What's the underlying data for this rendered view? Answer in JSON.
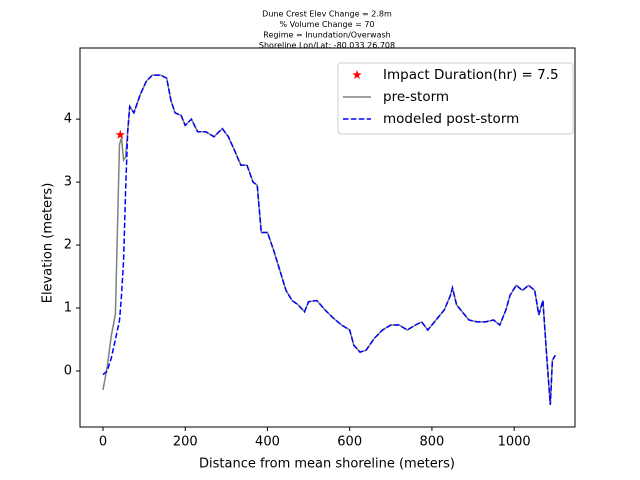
{
  "chart_data": {
    "type": "line",
    "title_lines": [
      "Dune Crest Elev Change = 2.8m",
      "% Volume Change = 70",
      "Regime = Inundation/Overwash",
      "Shoreline Lon/Lat: -80.033 26.708"
    ],
    "xlabel": "Distance from mean shoreline (meters)",
    "ylabel": "Elevation (meters)",
    "xlim": [
      -56,
      1148
    ],
    "ylim": [
      -0.89,
      5.13
    ],
    "xticks": [
      0,
      200,
      400,
      600,
      800,
      1000
    ],
    "yticks": [
      0,
      1,
      2,
      3,
      4
    ],
    "legend": "upper right",
    "x": [
      0,
      10,
      20,
      30,
      40,
      45,
      50,
      55,
      60,
      65,
      75,
      90,
      105,
      120,
      140,
      155,
      165,
      175,
      190,
      200,
      215,
      230,
      250,
      270,
      290,
      305,
      320,
      335,
      350,
      365,
      375,
      385,
      400,
      415,
      430,
      445,
      460,
      475,
      490,
      500,
      520,
      540,
      560,
      580,
      600,
      610,
      625,
      640,
      660,
      680,
      700,
      720,
      740,
      760,
      775,
      790,
      810,
      830,
      845,
      850,
      860,
      870,
      890,
      910,
      930,
      950,
      965,
      980,
      990,
      1005,
      1020,
      1035,
      1050,
      1060,
      1070,
      1080,
      1088,
      1093,
      1100
    ],
    "series": [
      {
        "name": "Impact Duration(hr) = 7.5",
        "color": "#ff0000",
        "marker": "star",
        "x": [
          42
        ],
        "values": [
          3.75
        ]
      },
      {
        "name": "pre-storm",
        "color": "#808080",
        "dash": false,
        "values": [
          -0.3,
          0.05,
          0.55,
          0.9,
          3.6,
          3.7,
          3.35,
          3.4,
          3.8,
          4.2,
          4.1,
          4.38,
          4.6,
          4.7,
          4.7,
          4.65,
          4.3,
          4.1,
          4.06,
          3.9,
          4.0,
          3.8,
          3.8,
          3.72,
          3.85,
          3.72,
          3.5,
          3.27,
          3.27,
          3.0,
          2.95,
          2.2,
          2.2,
          1.92,
          1.6,
          1.28,
          1.12,
          1.05,
          0.94,
          1.1,
          1.12,
          0.97,
          0.84,
          0.73,
          0.65,
          0.41,
          0.3,
          0.33,
          0.52,
          0.65,
          0.73,
          0.73,
          0.65,
          0.73,
          0.78,
          0.65,
          0.81,
          0.97,
          1.2,
          1.32,
          1.05,
          0.97,
          0.81,
          0.78,
          0.78,
          0.81,
          0.73,
          0.97,
          1.2,
          1.36,
          1.28,
          1.36,
          1.28,
          0.89,
          1.12,
          0.17,
          -0.54,
          0.17,
          0.25
        ]
      },
      {
        "name": "modeled post-storm",
        "color": "#0000ff",
        "dash": true,
        "values": [
          -0.06,
          0.0,
          0.2,
          0.5,
          0.8,
          1.2,
          1.76,
          2.87,
          3.8,
          4.2,
          4.1,
          4.38,
          4.6,
          4.7,
          4.7,
          4.65,
          4.3,
          4.1,
          4.06,
          3.9,
          4.0,
          3.8,
          3.8,
          3.72,
          3.85,
          3.72,
          3.5,
          3.27,
          3.27,
          3.0,
          2.95,
          2.2,
          2.2,
          1.92,
          1.6,
          1.28,
          1.12,
          1.05,
          0.94,
          1.1,
          1.12,
          0.97,
          0.84,
          0.73,
          0.65,
          0.41,
          0.3,
          0.33,
          0.52,
          0.65,
          0.73,
          0.73,
          0.65,
          0.73,
          0.78,
          0.65,
          0.81,
          0.97,
          1.2,
          1.32,
          1.05,
          0.97,
          0.81,
          0.78,
          0.78,
          0.81,
          0.73,
          0.97,
          1.2,
          1.36,
          1.28,
          1.36,
          1.28,
          0.89,
          1.12,
          0.17,
          -0.54,
          0.17,
          0.25
        ]
      }
    ]
  }
}
